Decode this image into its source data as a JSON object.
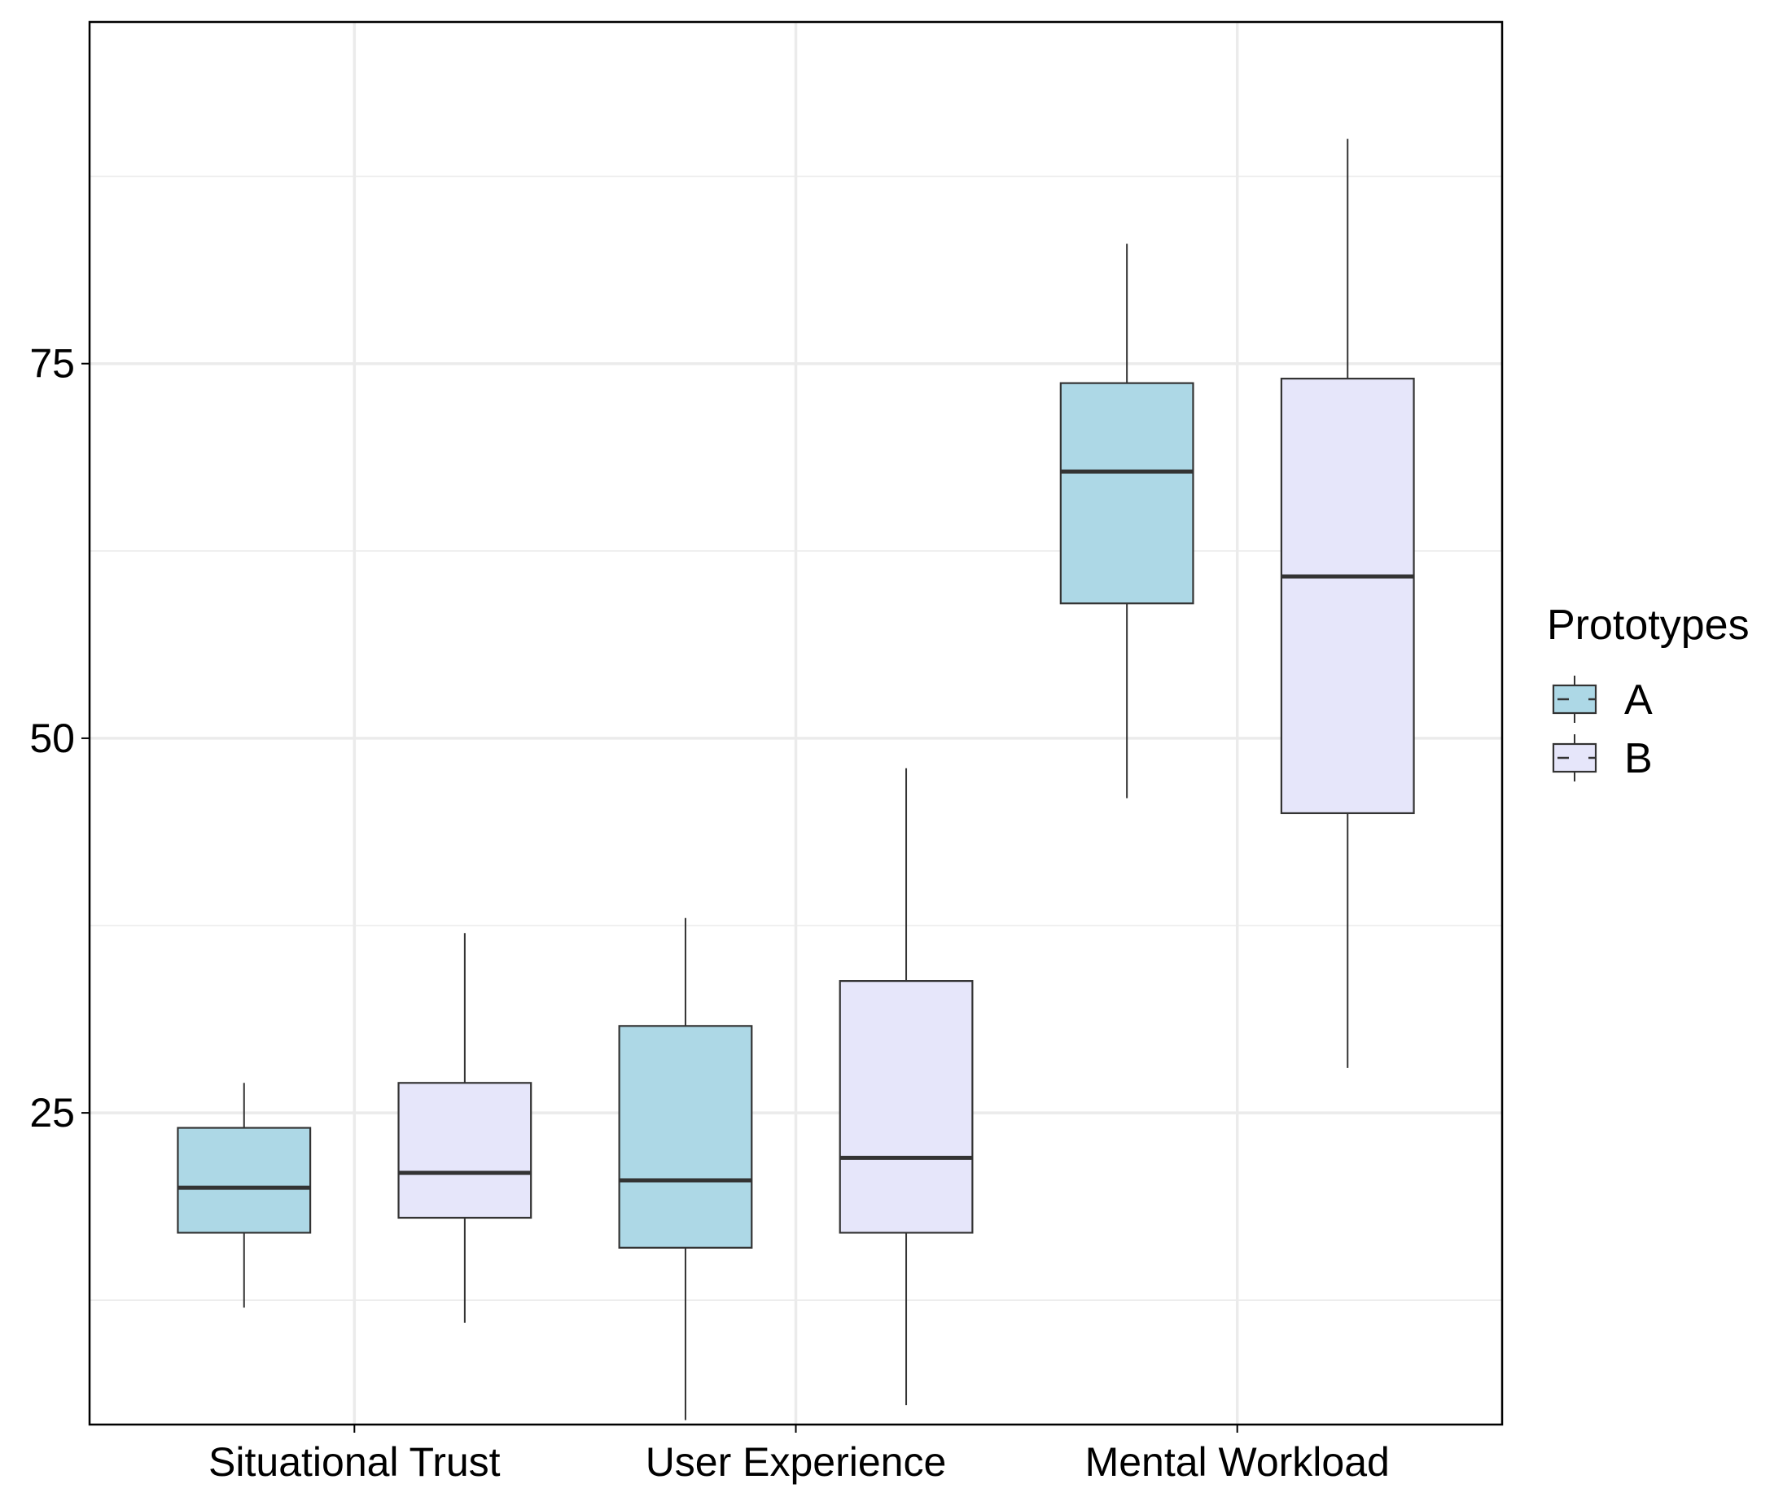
{
  "chart_data": {
    "type": "boxplot",
    "title": "",
    "xlabel": "",
    "ylabel": "",
    "categories": [
      "Situational Trust",
      "User Experience",
      "Mental Workload"
    ],
    "ylim": [
      4.2,
      97.8
    ],
    "y_ticks": [
      25,
      50,
      75
    ],
    "y_tick_labels": [
      "25",
      "50",
      "75"
    ],
    "y_minor_ticks": [
      12.5,
      37.5,
      62.5,
      87.5
    ],
    "grid": true,
    "legend": {
      "title": "Prototypes",
      "position": "right"
    },
    "series": [
      {
        "name": "A",
        "color": "#add8e6",
        "boxes": [
          {
            "category": "Situational Trust",
            "min": 12,
            "q1": 17,
            "median": 20,
            "q3": 24,
            "max": 27
          },
          {
            "category": "User Experience",
            "min": 4.5,
            "q1": 16,
            "median": 20.5,
            "q3": 30.8,
            "max": 38
          },
          {
            "category": "Mental Workload",
            "min": 46,
            "q1": 59,
            "median": 67.8,
            "q3": 73.7,
            "max": 83
          }
        ]
      },
      {
        "name": "B",
        "color": "#e6e6fa",
        "boxes": [
          {
            "category": "Situational Trust",
            "min": 11,
            "q1": 18,
            "median": 21,
            "q3": 27,
            "max": 37
          },
          {
            "category": "User Experience",
            "min": 5.5,
            "q1": 17,
            "median": 22,
            "q3": 33.8,
            "max": 48
          },
          {
            "category": "Mental Workload",
            "min": 28,
            "q1": 45,
            "median": 60.8,
            "q3": 74,
            "max": 90
          }
        ]
      }
    ]
  }
}
